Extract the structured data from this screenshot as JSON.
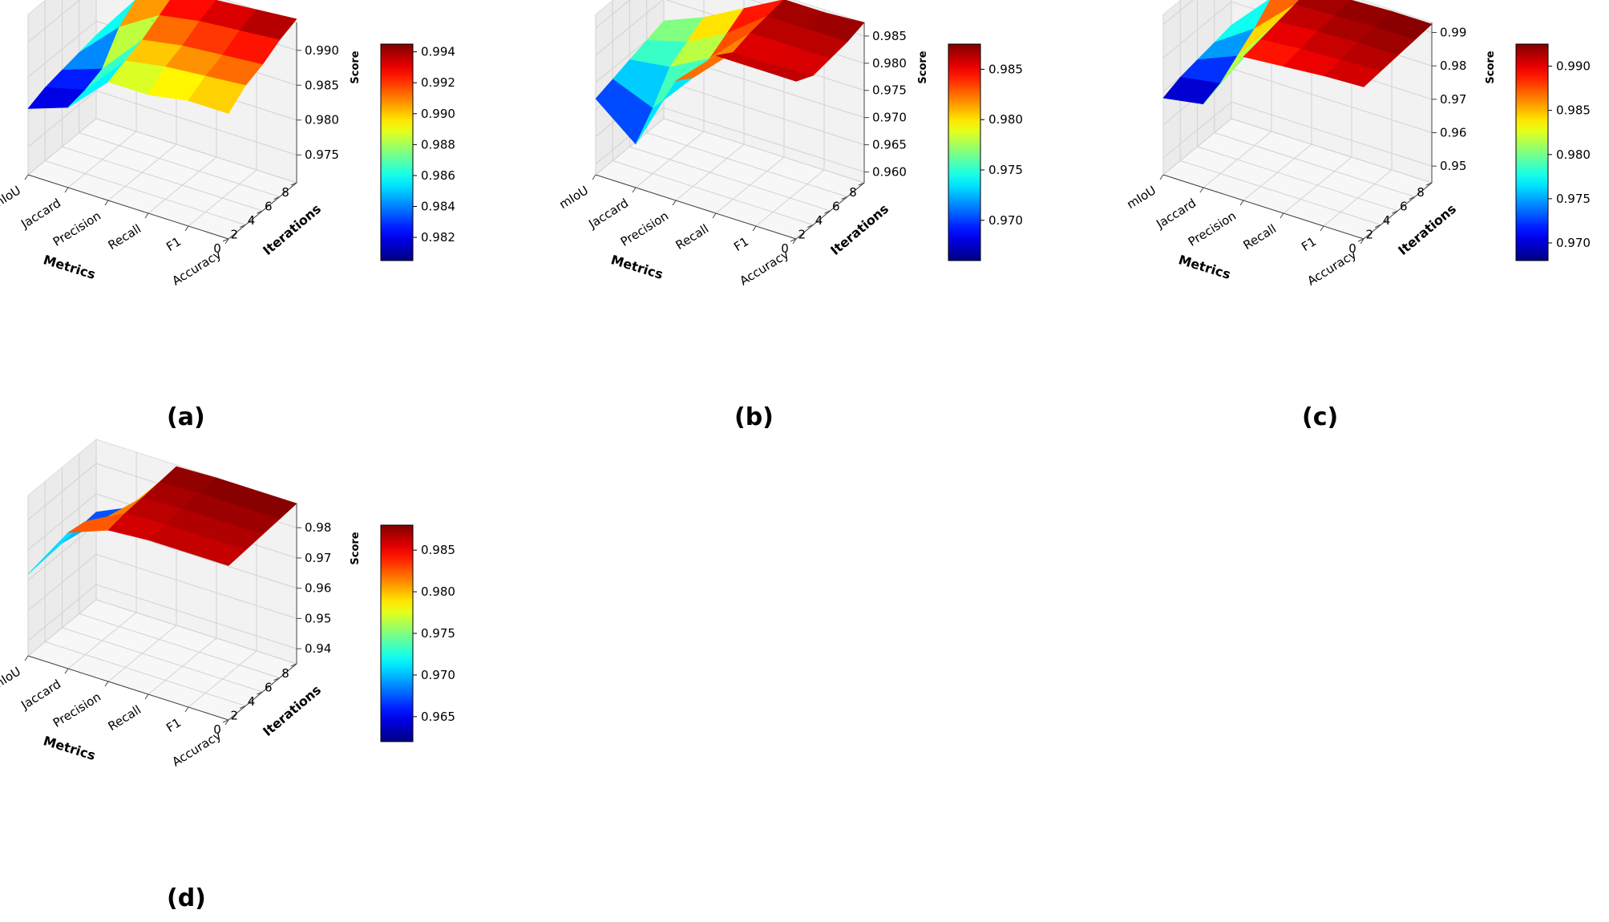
{
  "chart_data": [
    {
      "type": "surface3d",
      "panel_label": "(a)",
      "xlabel": "Metrics",
      "ylabel": "Iterations",
      "zlabel": "Score",
      "x_categories": [
        "mIoU",
        "Jaccard",
        "Precision",
        "Recall",
        "F1",
        "Accuracy"
      ],
      "y_ticks": [
        "0",
        "2",
        "4",
        "6",
        "8"
      ],
      "z_ticks": [
        "0.975",
        "0.980",
        "0.985",
        "0.990"
      ],
      "zlim": [
        0.971,
        0.994
      ],
      "colorbar_ticks": [
        "0.982",
        "0.984",
        "0.986",
        "0.988",
        "0.990",
        "0.992",
        "0.994"
      ],
      "clim": [
        0.9805,
        0.9945
      ],
      "series": [
        {
          "name": "Iter 0",
          "values": [
            0.9805,
            0.9825,
            0.988,
            0.988,
            0.989,
            0.989
          ]
        },
        {
          "name": "Iter 2",
          "values": [
            0.9815,
            0.983,
            0.989,
            0.99,
            0.9905,
            0.991
          ]
        },
        {
          "name": "Iter 4",
          "values": [
            0.982,
            0.984,
            0.99,
            0.991,
            0.9915,
            0.992
          ]
        },
        {
          "name": "Iter 6",
          "values": [
            0.9825,
            0.988,
            0.9915,
            0.9925,
            0.993,
            0.9935
          ]
        },
        {
          "name": "Iter 8",
          "values": [
            0.983,
            0.99,
            0.993,
            0.9935,
            0.994,
            0.9945
          ]
        }
      ]
    },
    {
      "type": "surface3d",
      "panel_label": "(b)",
      "xlabel": "Metrics",
      "ylabel": "Iterations",
      "zlabel": "Score",
      "x_categories": [
        "mIoU",
        "Jaccard",
        "Precision",
        "Recall",
        "F1",
        "Accuracy"
      ],
      "y_ticks": [
        "0",
        "2",
        "4",
        "6",
        "8"
      ],
      "z_ticks": [
        "0.960",
        "0.965",
        "0.970",
        "0.975",
        "0.980",
        "0.985"
      ],
      "zlim": [
        0.958,
        0.9875
      ],
      "colorbar_ticks": [
        "0.970",
        "0.975",
        "0.980",
        "0.985"
      ],
      "clim": [
        0.966,
        0.9875
      ],
      "series": [
        {
          "name": "Iter 0",
          "values": [
            0.972,
            0.966,
            0.98,
            0.987,
            0.987,
            0.987
          ]
        },
        {
          "name": "Iter 2",
          "values": [
            0.973,
            0.97,
            0.978,
            0.985,
            0.985,
            0.9855
          ]
        },
        {
          "name": "Iter 4",
          "values": [
            0.974,
            0.975,
            0.979,
            0.986,
            0.986,
            0.986
          ]
        },
        {
          "name": "Iter 6",
          "values": [
            0.975,
            0.977,
            0.981,
            0.9865,
            0.9865,
            0.9865
          ]
        },
        {
          "name": "Iter 8",
          "values": [
            0.976,
            0.979,
            0.983,
            0.987,
            0.987,
            0.9875
          ]
        }
      ]
    },
    {
      "type": "surface3d",
      "panel_label": "(c)",
      "xlabel": "Metrics",
      "ylabel": "Iterations",
      "zlabel": "Score",
      "x_categories": [
        "mIoU",
        "Jaccard",
        "Precision",
        "Recall",
        "F1",
        "Accuracy"
      ],
      "y_ticks": [
        "0",
        "2",
        "4",
        "6",
        "8"
      ],
      "z_ticks": [
        "0.95",
        "0.96",
        "0.97",
        "0.98",
        "0.99"
      ],
      "zlim": [
        0.945,
        0.993
      ],
      "colorbar_ticks": [
        "0.970",
        "0.975",
        "0.980",
        "0.985",
        "0.990"
      ],
      "clim": [
        0.968,
        0.9925
      ],
      "series": [
        {
          "name": "Iter 0",
          "values": [
            0.968,
            0.97,
            0.988,
            0.989,
            0.99,
            0.9905
          ]
        },
        {
          "name": "Iter 2",
          "values": [
            0.97,
            0.972,
            0.989,
            0.99,
            0.9905,
            0.991
          ]
        },
        {
          "name": "Iter 4",
          "values": [
            0.971,
            0.976,
            0.99,
            0.991,
            0.9915,
            0.9915
          ]
        },
        {
          "name": "Iter 6",
          "values": [
            0.972,
            0.98,
            0.991,
            0.9915,
            0.992,
            0.992
          ]
        },
        {
          "name": "Iter 8",
          "values": [
            0.973,
            0.985,
            0.992,
            0.992,
            0.9925,
            0.9925
          ]
        }
      ]
    },
    {
      "type": "surface3d",
      "panel_label": "(d)",
      "xlabel": "Metrics",
      "ylabel": "Iterations",
      "zlabel": "Score",
      "x_categories": [
        "mIoU",
        "Jaccard",
        "Precision",
        "Recall",
        "F1",
        "Accuracy"
      ],
      "y_ticks": [
        "0",
        "2",
        "4",
        "6",
        "8"
      ],
      "z_ticks": [
        "0.94",
        "0.95",
        "0.96",
        "0.97",
        "0.98"
      ],
      "zlim": [
        0.935,
        0.988
      ],
      "colorbar_ticks": [
        "0.965",
        "0.970",
        "0.975",
        "0.980",
        "0.985"
      ],
      "clim": [
        0.962,
        0.988
      ],
      "series": [
        {
          "name": "Iter 0",
          "values": [
            0.962,
            0.98,
            0.985,
            0.986,
            0.986,
            0.986
          ]
        },
        {
          "name": "Iter 2",
          "values": [
            0.9625,
            0.979,
            0.986,
            0.9865,
            0.9865,
            0.9865
          ]
        },
        {
          "name": "Iter 4",
          "values": [
            0.963,
            0.975,
            0.9865,
            0.987,
            0.987,
            0.987
          ]
        },
        {
          "name": "Iter 6",
          "values": [
            0.9635,
            0.972,
            0.987,
            0.9875,
            0.9875,
            0.9875
          ]
        },
        {
          "name": "Iter 8",
          "values": [
            0.964,
            0.97,
            0.9875,
            0.988,
            0.988,
            0.988
          ]
        }
      ]
    }
  ]
}
